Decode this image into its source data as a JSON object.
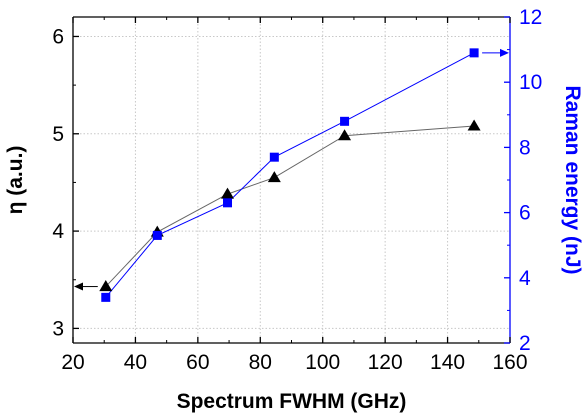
{
  "chart_data": {
    "type": "line",
    "title": "",
    "xlabel": "Spectrum FWHM (GHz)",
    "ylabel_left": "η (a.u.)",
    "ylabel_right": "Raman energy (nJ)",
    "xlim": [
      20,
      160
    ],
    "ylim_left": [
      2.85,
      6.2
    ],
    "ylim_right": [
      2,
      12
    ],
    "x_ticks": [
      20,
      40,
      60,
      80,
      100,
      120,
      140,
      160
    ],
    "y_left_ticks": [
      3,
      4,
      5,
      6
    ],
    "y_right_ticks": [
      2,
      4,
      6,
      8,
      10,
      12
    ],
    "grid": true,
    "legend": "none",
    "series": [
      {
        "axis": "left",
        "marker": "triangle",
        "color": "#000000",
        "line_color": "#666666",
        "x": [
          30.5,
          47.0,
          69.5,
          84.5,
          107.0,
          148.5
        ],
        "y": [
          3.43,
          3.99,
          4.38,
          4.55,
          4.98,
          5.08
        ]
      },
      {
        "axis": "right",
        "marker": "square",
        "color": "#0000ff",
        "line_color": "#0000ff",
        "x": [
          30.5,
          47.0,
          69.5,
          84.5,
          107.0,
          148.5
        ],
        "y": [
          3.4,
          5.3,
          6.3,
          7.7,
          8.8,
          10.9
        ]
      }
    ],
    "annotations": [
      {
        "type": "arrow",
        "series_axis": "left",
        "direction": "left",
        "from_x": 30.5,
        "y": 3.43
      },
      {
        "type": "arrow",
        "series_axis": "right",
        "direction": "right",
        "from_x": 148.5,
        "y": 10.9
      }
    ]
  }
}
